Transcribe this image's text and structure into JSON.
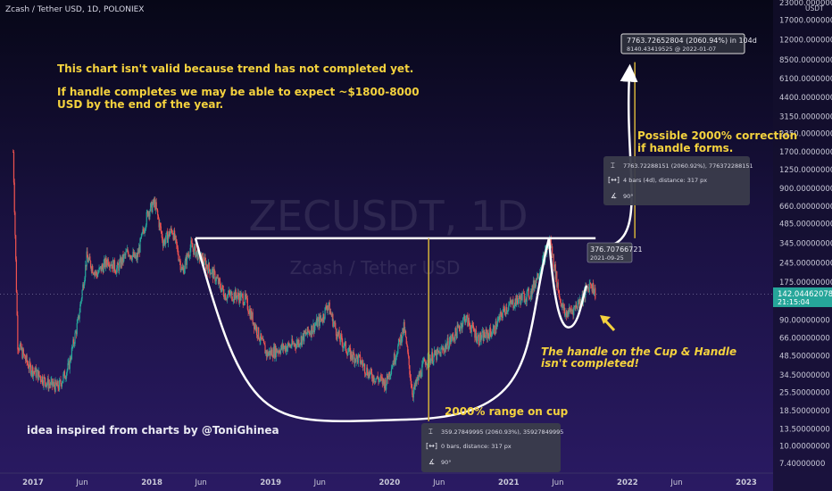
{
  "header": {
    "title": "Zcash / Tether USD, 1D, POLONIEX"
  },
  "watermark": {
    "symbol": "ZECUSDT, 1D",
    "name": "Zcash / Tether USD"
  },
  "notes": {
    "top_line1": "This chart isn't valid because trend has not completed yet.",
    "top_line2": "If handle completes we may be able to expect ~$1800-8000",
    "top_line3": "USD by the end of the year.",
    "correction_line1": "Possible 2000% correction",
    "correction_line2": "if handle forms.",
    "handle_line1": "The handle on the Cup & Handle",
    "handle_line2": "isn't completed!",
    "cup_range": "2000% range on cup",
    "credit": "idea inspired from charts by @ToniGhinea"
  },
  "measure_top": {
    "line1": "7763.72652804 (2060.94%) in 104d",
    "line2": "8140.43419525 @ 2022-01-07"
  },
  "measure_mid": {
    "line1": "7763.72288151 (2060.92%), 776372288151",
    "line2": "4 bars (4d), distance: 317 px",
    "line3": "90°"
  },
  "measure_bot": {
    "line1": "359.27849995 (2060.93%), 35927849995",
    "line2": "0 bars, distance: 317 px",
    "line3": "90°"
  },
  "level_label": {
    "price": "376.70766721",
    "date": "2021-09-25"
  },
  "price_label": {
    "price": "142.04462078",
    "time": "21:15:04"
  },
  "chart_data": {
    "type": "candlestick",
    "scale": "log",
    "ylim": [
      6.3,
      26000
    ],
    "y_currency_label": "USDT",
    "y_ticks": [
      "23000.00000000",
      "17000.00000000",
      "12000.00000000",
      "8500.00000000",
      "6100.00000000",
      "4400.00000000",
      "3150.00000000",
      "2350.00000000",
      "1700.00000000",
      "1250.00000000",
      "900.00000000",
      "660.00000000",
      "485.00000000",
      "345.00000000",
      "245.00000000",
      "175.00000000",
      "90.00000000",
      "66.00000000",
      "48.50000000",
      "34.50000000",
      "25.50000000",
      "18.50000000",
      "13.50000000",
      "10.00000000",
      "7.40000000"
    ],
    "y_tick_values": [
      23000,
      17000,
      12000,
      8500,
      6100,
      4400,
      3150,
      2350,
      1700,
      1250,
      900,
      660,
      485,
      345,
      245,
      175,
      90,
      66,
      48.5,
      34.5,
      25.5,
      18.5,
      13.5,
      10,
      7.4
    ],
    "x_ticks": [
      "2017",
      "Jun",
      "2018",
      "Jun",
      "2019",
      "Jun",
      "2020",
      "Jun",
      "2021",
      "Jun",
      "2022",
      "Jun",
      "2023"
    ],
    "x_tick_dates": [
      "2017-01-01",
      "2017-06-01",
      "2018-01-01",
      "2018-06-01",
      "2019-01-01",
      "2019-06-01",
      "2020-01-01",
      "2020-06-01",
      "2021-01-01",
      "2021-06-01",
      "2022-01-01",
      "2022-06-01",
      "2023-01-01"
    ],
    "price_path": [
      [
        "2016-11-01",
        1700
      ],
      [
        "2016-11-15",
        60
      ],
      [
        "2016-12-20",
        40
      ],
      [
        "2017-02-15",
        30
      ],
      [
        "2017-03-20",
        28
      ],
      [
        "2017-04-20",
        40
      ],
      [
        "2017-05-20",
        90
      ],
      [
        "2017-06-15",
        270
      ],
      [
        "2017-07-15",
        200
      ],
      [
        "2017-08-20",
        260
      ],
      [
        "2017-09-15",
        220
      ],
      [
        "2017-10-20",
        300
      ],
      [
        "2017-11-15",
        260
      ],
      [
        "2017-12-20",
        600
      ],
      [
        "2018-01-10",
        700
      ],
      [
        "2018-02-05",
        350
      ],
      [
        "2018-03-05",
        440
      ],
      [
        "2018-04-05",
        210
      ],
      [
        "2018-05-01",
        330
      ],
      [
        "2018-06-05",
        260
      ],
      [
        "2018-07-10",
        200
      ],
      [
        "2018-08-15",
        140
      ],
      [
        "2018-09-15",
        140
      ],
      [
        "2018-10-15",
        130
      ],
      [
        "2018-11-20",
        75
      ],
      [
        "2018-12-20",
        50
      ],
      [
        "2019-02-01",
        55
      ],
      [
        "2019-03-20",
        60
      ],
      [
        "2019-05-01",
        75
      ],
      [
        "2019-06-10",
        95
      ],
      [
        "2019-06-25",
        120
      ],
      [
        "2019-07-25",
        70
      ],
      [
        "2019-09-01",
        50
      ],
      [
        "2019-10-01",
        45
      ],
      [
        "2019-11-01",
        35
      ],
      [
        "2019-12-20",
        30
      ],
      [
        "2020-01-20",
        50
      ],
      [
        "2020-02-15",
        80
      ],
      [
        "2020-03-12",
        25
      ],
      [
        "2020-04-20",
        45
      ],
      [
        "2020-06-01",
        50
      ],
      [
        "2020-07-20",
        70
      ],
      [
        "2020-08-20",
        95
      ],
      [
        "2020-10-01",
        65
      ],
      [
        "2020-11-15",
        75
      ],
      [
        "2020-12-20",
        110
      ],
      [
        "2021-02-01",
        130
      ],
      [
        "2021-03-10",
        145
      ],
      [
        "2021-04-15",
        250
      ],
      [
        "2021-05-08",
        370
      ],
      [
        "2021-06-05",
        140
      ],
      [
        "2021-06-22",
        100
      ],
      [
        "2021-07-20",
        110
      ],
      [
        "2021-08-20",
        140
      ],
      [
        "2021-09-10",
        175
      ],
      [
        "2021-09-25",
        142
      ]
    ],
    "cup_rim": {
      "from": "2018-05-15",
      "to": "2021-05-05",
      "price": 376.7
    },
    "cup_bottom": {
      "date": "2020-03-01",
      "price": 15.9
    },
    "projection": {
      "from_date": "2021-09-25",
      "from_price": 376.7,
      "to_date": "2022-01-07",
      "to_price": 8140.43
    }
  }
}
